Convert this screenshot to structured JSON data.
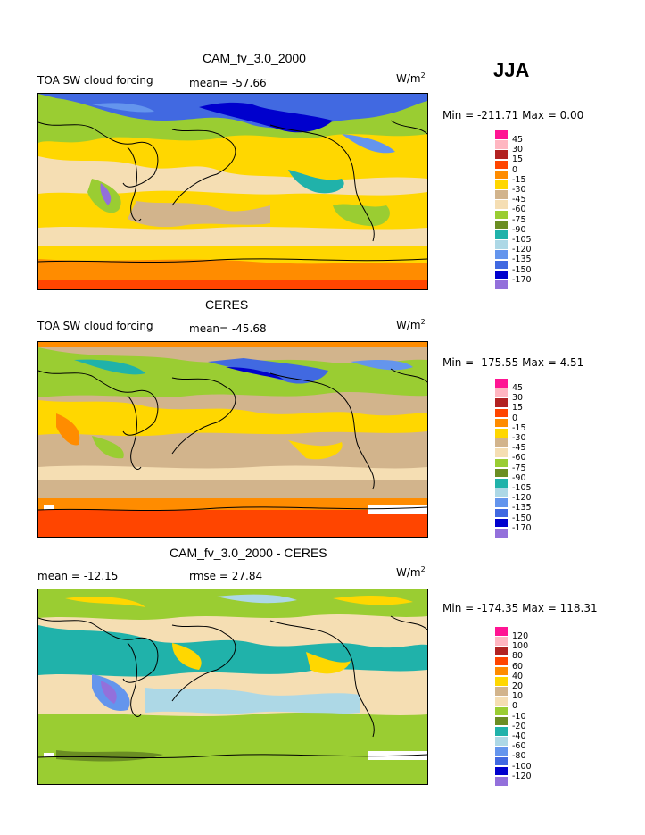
{
  "season": "JJA",
  "panels": [
    {
      "title": "CAM_fv_3.0_2000",
      "left_label": "TOA SW cloud forcing",
      "stat1": "mean= -57.66",
      "stat2": "",
      "units": "W/m",
      "units_sup": "2",
      "minmax": "Min = -211.71  Max =    0.00",
      "levels": [
        "45",
        "30",
        "15",
        "0",
        "-15",
        "-30",
        "-45",
        "-60",
        "-75",
        "-90",
        "-105",
        "-120",
        "-135",
        "-150",
        "-170"
      ]
    },
    {
      "title": "CERES",
      "left_label": "TOA SW cloud forcing",
      "stat1": "mean= -45.68",
      "stat2": "",
      "units": "W/m",
      "units_sup": "2",
      "minmax": "Min = -175.55  Max =    4.51",
      "levels": [
        "45",
        "30",
        "15",
        "0",
        "-15",
        "-30",
        "-45",
        "-60",
        "-75",
        "-90",
        "-105",
        "-120",
        "-135",
        "-150",
        "-170"
      ]
    },
    {
      "title": "CAM_fv_3.0_2000 - CERES",
      "left_label": "mean = -12.15",
      "stat1": "rmse =  27.84",
      "stat2": "",
      "units": "W/m",
      "units_sup": "2",
      "minmax": "Min = -174.35  Max = 118.31",
      "levels": [
        "120",
        "100",
        "80",
        "60",
        "40",
        "20",
        "10",
        "0",
        "-10",
        "-20",
        "-40",
        "-60",
        "-80",
        "-100",
        "-120"
      ]
    }
  ],
  "palette": [
    "#ff1493",
    "#ffb6c1",
    "#b22222",
    "#ff4500",
    "#ff8c00",
    "#ffd700",
    "#d2b48c",
    "#f5deb3",
    "#9acd32",
    "#6b8e23",
    "#20b2aa",
    "#add8e6",
    "#6495ed",
    "#4169e1",
    "#0000cd",
    "#9370db"
  ]
}
